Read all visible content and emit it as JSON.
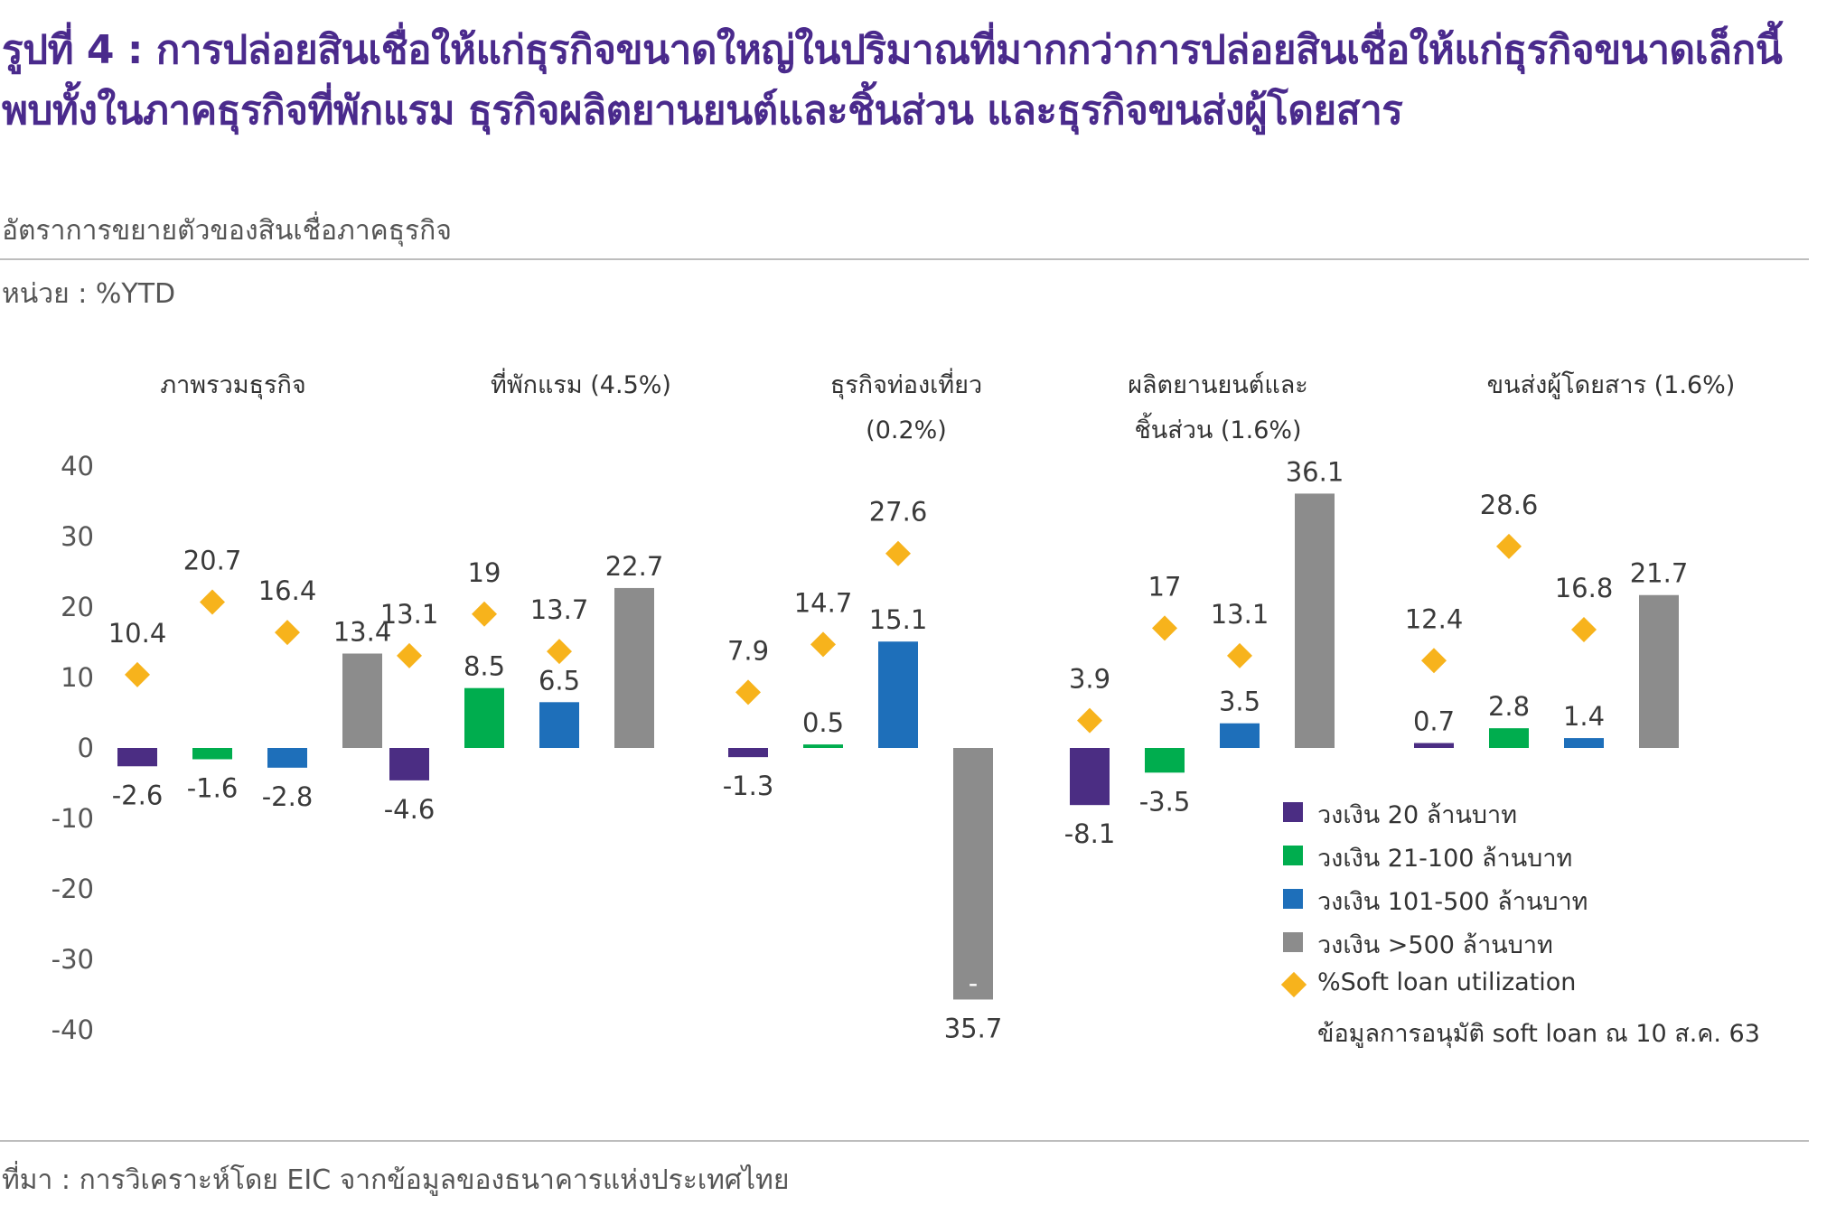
{
  "header": {
    "title": "รูปที่ 4 : การปล่อยสินเชื่อให้แก่ธุรกิจขนาดใหญ่ในปริมาณที่มากกว่าการปล่อยสินเชื่อให้แก่ธุรกิจขนาดเล็กนี้ พบทั้งในภาคธุรกิจที่พักแรม ธุรกิจผลิตยานยนต์และชิ้นส่วน และธุรกิจขนส่งผู้โดยสาร",
    "subtitle": "อัตราการขยายตัวของสินเชื่อภาคธุรกิจ",
    "unit": "หน่วย : %YTD"
  },
  "footer": {
    "source": "ที่มา : การวิเคราะห์โดย EIC จากข้อมูลของธนาคารแห่งประเทศไทย"
  },
  "colors": {
    "title": "#4a2a8c",
    "series": [
      "#4b2d83",
      "#00ad4e",
      "#1e6fba",
      "#8c8c8c"
    ],
    "marker": "#f7b31c"
  },
  "chart_data": {
    "type": "bar",
    "title": "",
    "ylabel": "",
    "ylim": [
      -40,
      40
    ],
    "yticks": [
      40,
      30,
      20,
      10,
      0,
      -10,
      -20,
      -30,
      -40
    ],
    "panels": [
      {
        "title_lines": [
          "ภาพรวมธุรกิจ"
        ],
        "bars": [
          -2.6,
          -1.6,
          -2.8,
          13.4
        ],
        "bar_labels": [
          "-2.6",
          "-1.6",
          "-2.8",
          "13.4"
        ],
        "markers": [
          10.4,
          20.7,
          16.4
        ],
        "marker_labels": [
          "10.4",
          "20.7",
          "16.4"
        ]
      },
      {
        "title_lines": [
          "ที่พักแรม (4.5%)"
        ],
        "bars": [
          -4.6,
          8.5,
          6.5,
          22.7
        ],
        "bar_labels": [
          "-4.6",
          "8.5",
          "6.5",
          "22.7"
        ],
        "markers": [
          13.1,
          19,
          13.7
        ],
        "marker_labels": [
          "13.1",
          "19",
          "13.7"
        ]
      },
      {
        "title_lines": [
          "ธุรกิจท่องเที่ยว",
          "(0.2%)"
        ],
        "bars": [
          -1.3,
          0.5,
          15.1,
          -35.7
        ],
        "bar_labels": [
          "-1.3",
          "0.5",
          "15.1",
          "35.7"
        ],
        "bar_label_prefix": [
          "",
          "",
          "",
          "-"
        ],
        "markers": [
          7.9,
          14.7,
          27.6
        ],
        "marker_labels": [
          "7.9",
          "14.7",
          "27.6"
        ]
      },
      {
        "title_lines": [
          "ผลิตยานยนต์และ",
          "ชิ้นส่วน (1.6%)"
        ],
        "bars": [
          -8.1,
          -3.5,
          3.5,
          36.1
        ],
        "bar_labels": [
          "-8.1",
          "-3.5",
          "3.5",
          "36.1"
        ],
        "markers": [
          3.9,
          17,
          13.1
        ],
        "marker_labels": [
          "3.9",
          "17",
          "13.1"
        ]
      },
      {
        "title_lines": [
          "ขนส่งผู้โดยสาร (1.6%)"
        ],
        "bars": [
          0.7,
          2.8,
          1.4,
          21.7
        ],
        "bar_labels": [
          "0.7",
          "2.8",
          "1.4",
          "21.7"
        ],
        "markers": [
          12.4,
          28.6,
          16.8
        ],
        "marker_labels": [
          "12.4",
          "28.6",
          "16.8"
        ]
      }
    ],
    "series": [
      {
        "name": "วงเงิน  20 ล้านบาท"
      },
      {
        "name": "วงเงิน 21-100 ล้านบาท"
      },
      {
        "name": "วงเงิน 101-500 ล้านบาท"
      },
      {
        "name": "วงเงิน >500 ล้านบาท"
      }
    ],
    "marker_series": {
      "name": "%Soft loan utilization"
    },
    "legend_note": "ข้อมูลการอนุมัติ soft loan ณ 10 ส.ค. 63",
    "legend_position": "bottom-right",
    "grid": false
  }
}
